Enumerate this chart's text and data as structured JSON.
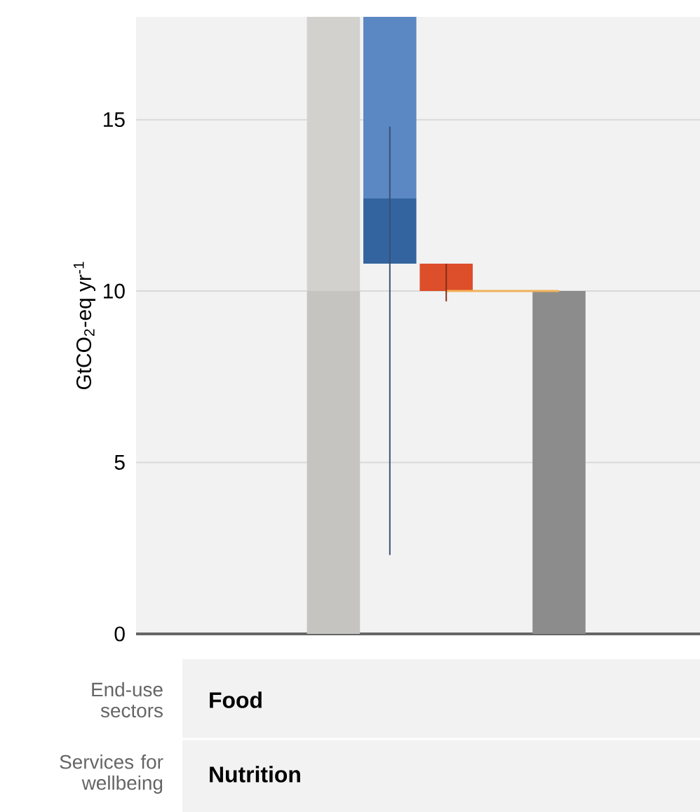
{
  "chart_data": {
    "type": "bar",
    "ylabel": "GtCO$_{2}$-eq yr$^{-1}$",
    "categories": [
      null,
      null,
      null,
      null,
      null,
      null,
      null,
      null,
      null,
      null
    ],
    "series": [
      {
        "colors": [
          null,
          null,
          null,
          "#c6c4c0",
          "#33649f",
          null,
          null,
          null,
          null,
          null
        ],
        "values": [
          null,
          null,
          null,
          10,
          1.9,
          null,
          null,
          null,
          null,
          null
        ],
        "base": [
          null,
          null,
          null,
          0,
          10.8,
          null,
          null,
          null,
          null,
          null
        ]
      },
      {
        "colors": [
          null,
          null,
          null,
          "#d3d1ce",
          "#5b88c3",
          "#dd4e2a",
          null,
          "#8c8c8c",
          null,
          null
        ],
        "values": [
          null,
          null,
          null,
          8,
          5.3,
          0.8,
          null,
          10,
          null,
          null
        ],
        "base": [
          null,
          null,
          null,
          10,
          12.7,
          10,
          null,
          0,
          null,
          null
        ],
        "errors": [
          null,
          null,
          null,
          null,
          [
            2.3,
            14.8
          ],
          [
            9.7,
            10.8
          ],
          null,
          null,
          null,
          null
        ]
      },
      {
        "type": "line",
        "color": "#f2b25a",
        "values": [
          null,
          null,
          null,
          null,
          null,
          10,
          10,
          10,
          null,
          null
        ]
      }
    ],
    "ylim": [
      0,
      18
    ],
    "yticks": [
      0,
      5,
      10,
      15
    ],
    "grid": "y",
    "annotations": [
      "End-use sectors",
      "Food",
      "Services for wellbeing",
      "Nutrition"
    ]
  }
}
